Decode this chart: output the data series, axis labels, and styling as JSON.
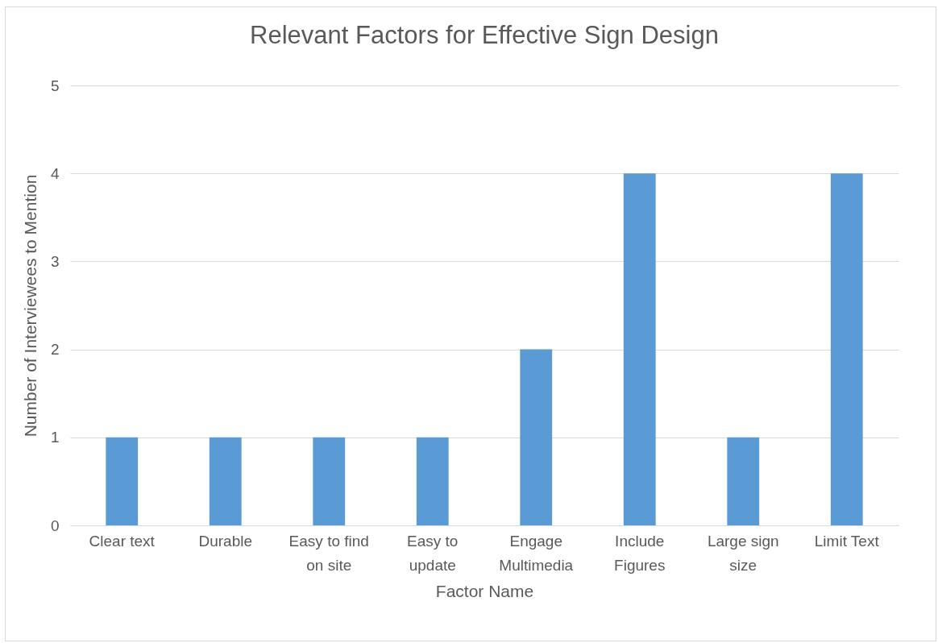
{
  "chart_data": {
    "type": "bar",
    "title": "Relevant Factors for Effective Sign Design",
    "xlabel": "Factor Name",
    "ylabel": "Number of Interviewees to Mention",
    "categories": [
      "Clear text",
      "Durable",
      "Easy to find on site",
      "Easy to update",
      "Engage Multimedia",
      "Include Figures",
      "Large sign size",
      "Limit Text"
    ],
    "values": [
      1,
      1,
      1,
      1,
      2,
      4,
      1,
      4
    ],
    "color": "#5b9bd5",
    "ylim": [
      0,
      5
    ],
    "yticks": [
      0,
      1,
      2,
      3,
      4,
      5
    ],
    "grid": "y"
  }
}
